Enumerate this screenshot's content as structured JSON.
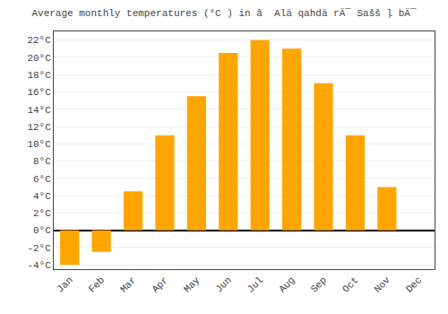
{
  "chart_data": {
    "type": "bar",
    "title": "Average monthly temperatures (°C ) in â  Alä qahdä rÄ¯ Sašš ļ bÄ¯",
    "categories": [
      "Jan",
      "Feb",
      "Mar",
      "Apr",
      "May",
      "Jun",
      "Jul",
      "Aug",
      "Sep",
      "Oct",
      "Nov",
      "Dec"
    ],
    "values": [
      -4.0,
      -2.5,
      4.5,
      11.0,
      15.5,
      20.5,
      22.0,
      21.0,
      17.0,
      11.0,
      5.0,
      0.0
    ],
    "color": "#FFA500",
    "ylim": [
      -4.5,
      23.0
    ],
    "yticks": [
      {
        "value": -4,
        "label": "-4°C"
      },
      {
        "value": -2,
        "label": "-2°C"
      },
      {
        "value": 0,
        "label": "0°C"
      },
      {
        "value": 2,
        "label": "2°C"
      },
      {
        "value": 4,
        "label": "4°C"
      },
      {
        "value": 6,
        "label": "6°C"
      },
      {
        "value": 8,
        "label": "8°C"
      },
      {
        "value": 10,
        "label": "10°C"
      },
      {
        "value": 12,
        "label": "12°C"
      },
      {
        "value": 14,
        "label": "14°C"
      },
      {
        "value": 16,
        "label": "16°C"
      },
      {
        "value": 18,
        "label": "18°C"
      },
      {
        "value": 20,
        "label": "20°C"
      },
      {
        "value": 22,
        "label": "22°C"
      }
    ],
    "grid": true
  }
}
